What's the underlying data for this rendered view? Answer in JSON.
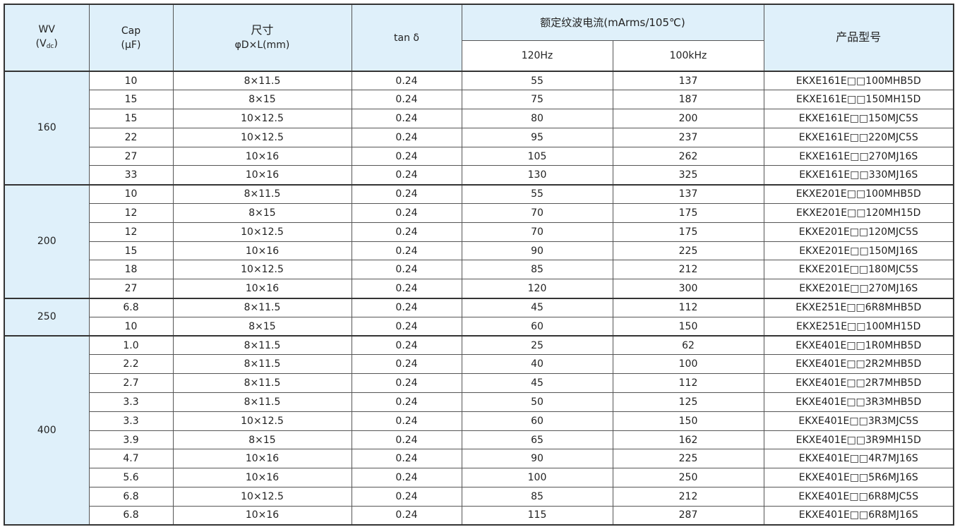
{
  "header": {
    "wv": "WV",
    "wv_unit_pre": "(V",
    "wv_unit_sub": "dc",
    "wv_unit_post": ")",
    "cap": "Cap",
    "cap_unit": "(μF)",
    "size": "尺寸",
    "size_unit": "φD×L(mm)",
    "tan": "tan δ",
    "ripple": "额定纹波电流(mArms/105℃)",
    "f120": "120Hz",
    "f100k": "100kHz",
    "model": "产品型号"
  },
  "groups": [
    {
      "wv": "160",
      "rows": [
        [
          "10",
          "8×11.5",
          "0.24",
          "55",
          "137",
          "EKXE161E□□100MHB5D"
        ],
        [
          "15",
          "8×15",
          "0.24",
          "75",
          "187",
          "EKXE161E□□150MH15D"
        ],
        [
          "15",
          "10×12.5",
          "0.24",
          "80",
          "200",
          "EKXE161E□□150MJC5S"
        ],
        [
          "22",
          "10×12.5",
          "0.24",
          "95",
          "237",
          "EKXE161E□□220MJC5S"
        ],
        [
          "27",
          "10×16",
          "0.24",
          "105",
          "262",
          "EKXE161E□□270MJ16S"
        ],
        [
          "33",
          "10×16",
          "0.24",
          "130",
          "325",
          "EKXE161E□□330MJ16S"
        ]
      ]
    },
    {
      "wv": "200",
      "rows": [
        [
          "10",
          "8×11.5",
          "0.24",
          "55",
          "137",
          "EKXE201E□□100MHB5D"
        ],
        [
          "12",
          "8×15",
          "0.24",
          "70",
          "175",
          "EKXE201E□□120MH15D"
        ],
        [
          "12",
          "10×12.5",
          "0.24",
          "70",
          "175",
          "EKXE201E□□120MJC5S"
        ],
        [
          "15",
          "10×16",
          "0.24",
          "90",
          "225",
          "EKXE201E□□150MJ16S"
        ],
        [
          "18",
          "10×12.5",
          "0.24",
          "85",
          "212",
          "EKXE201E□□180MJC5S"
        ],
        [
          "27",
          "10×16",
          "0.24",
          "120",
          "300",
          "EKXE201E□□270MJ16S"
        ]
      ]
    },
    {
      "wv": "250",
      "rows": [
        [
          "6.8",
          "8×11.5",
          "0.24",
          "45",
          "112",
          "EKXE251E□□6R8MHB5D"
        ],
        [
          "10",
          "8×15",
          "0.24",
          "60",
          "150",
          "EKXE251E□□100MH15D"
        ]
      ]
    },
    {
      "wv": "400",
      "rows": [
        [
          "1.0",
          "8×11.5",
          "0.24",
          "25",
          "62",
          "EKXE401E□□1R0MHB5D"
        ],
        [
          "2.2",
          "8×11.5",
          "0.24",
          "40",
          "100",
          "EKXE401E□□2R2MHB5D"
        ],
        [
          "2.7",
          "8×11.5",
          "0.24",
          "45",
          "112",
          "EKXE401E□□2R7MHB5D"
        ],
        [
          "3.3",
          "8×11.5",
          "0.24",
          "50",
          "125",
          "EKXE401E□□3R3MHB5D"
        ],
        [
          "3.3",
          "10×12.5",
          "0.24",
          "60",
          "150",
          "EKXE401E□□3R3MJC5S"
        ],
        [
          "3.9",
          "8×15",
          "0.24",
          "65",
          "162",
          "EKXE401E□□3R9MH15D"
        ],
        [
          "4.7",
          "10×16",
          "0.24",
          "90",
          "225",
          "EKXE401E□□4R7MJ16S"
        ],
        [
          "5.6",
          "10×16",
          "0.24",
          "100",
          "250",
          "EKXE401E□□5R6MJ16S"
        ],
        [
          "6.8",
          "10×12.5",
          "0.24",
          "85",
          "212",
          "EKXE401E□□6R8MJC5S"
        ],
        [
          "6.8",
          "10×16",
          "0.24",
          "115",
          "287",
          "EKXE401E□□6R8MJ16S"
        ]
      ]
    }
  ]
}
